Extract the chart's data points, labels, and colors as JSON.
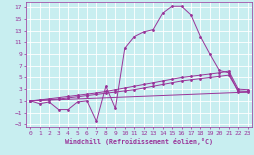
{
  "xlabel": "Windchill (Refroidissement éolien,°C)",
  "background_color": "#c8eef0",
  "grid_color": "#ffffff",
  "line_color": "#993399",
  "xlim": [
    -0.5,
    23.5
  ],
  "ylim": [
    -3.5,
    18
  ],
  "xticks": [
    0,
    1,
    2,
    3,
    4,
    5,
    6,
    7,
    8,
    9,
    10,
    11,
    12,
    13,
    14,
    15,
    16,
    17,
    18,
    19,
    20,
    21,
    22,
    23
  ],
  "yticks": [
    -3,
    -1,
    1,
    3,
    5,
    7,
    9,
    11,
    13,
    15,
    17
  ],
  "line1_x": [
    0,
    1,
    2,
    3,
    4,
    5,
    6,
    7,
    8,
    9,
    10,
    11,
    12,
    13,
    14,
    15,
    16,
    17,
    18,
    19,
    20,
    21,
    22,
    23
  ],
  "line1_y": [
    1,
    0.5,
    0.8,
    -0.5,
    -0.5,
    0.8,
    1.0,
    -2.5,
    3.5,
    -0.3,
    10.0,
    12.0,
    12.8,
    13.2,
    16.0,
    17.2,
    17.2,
    15.7,
    12.0,
    9.0,
    6.2,
    5.8,
    2.5,
    2.5
  ],
  "line2_x": [
    0,
    1,
    2,
    3,
    4,
    5,
    6,
    7,
    8,
    9,
    10,
    11,
    12,
    13,
    14,
    15,
    16,
    17,
    18,
    19,
    20,
    21,
    22,
    23
  ],
  "line2_y": [
    1.0,
    1.1,
    1.2,
    1.3,
    1.5,
    1.7,
    1.9,
    2.1,
    2.3,
    2.5,
    2.7,
    2.9,
    3.2,
    3.5,
    3.8,
    4.1,
    4.4,
    4.6,
    4.8,
    5.0,
    5.2,
    5.4,
    2.7,
    2.6
  ],
  "line3_x": [
    0,
    1,
    2,
    3,
    4,
    5,
    6,
    7,
    8,
    9,
    10,
    11,
    12,
    13,
    14,
    15,
    16,
    17,
    18,
    19,
    20,
    21,
    22,
    23
  ],
  "line3_y": [
    1.0,
    1.15,
    1.35,
    1.55,
    1.75,
    1.95,
    2.15,
    2.35,
    2.6,
    2.9,
    3.2,
    3.5,
    3.8,
    4.1,
    4.4,
    4.7,
    5.0,
    5.2,
    5.4,
    5.6,
    5.8,
    6.1,
    3.0,
    2.9
  ],
  "line4_x": [
    0,
    23
  ],
  "line4_y": [
    1.0,
    2.5
  ]
}
